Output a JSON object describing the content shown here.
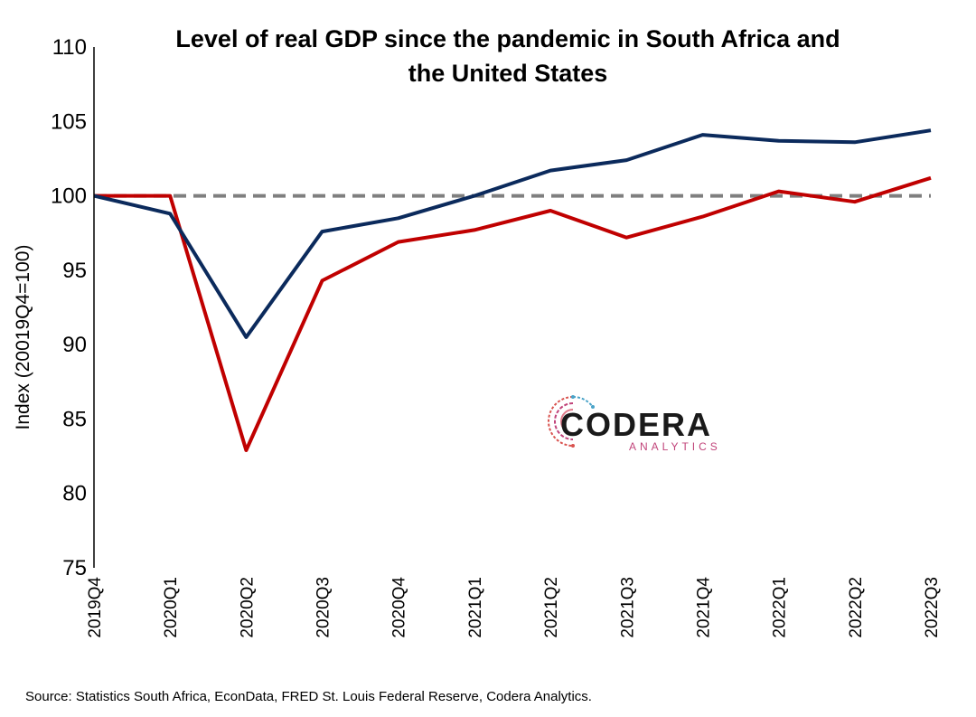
{
  "chart_data": {
    "type": "line",
    "title": "Level of real GDP since the pandemic in South Africa and the United States",
    "title_lines": [
      "Level of real GDP since the pandemic in South Africa and",
      "the United States"
    ],
    "ylabel": "Index (20019Q4=100)",
    "xlabel": "",
    "categories": [
      "2019Q4",
      "2020Q1",
      "2020Q2",
      "2020Q3",
      "2020Q4",
      "2021Q1",
      "2021Q2",
      "2021Q3",
      "2021Q4",
      "2022Q1",
      "2022Q2",
      "2022Q3"
    ],
    "ylim": [
      75,
      110
    ],
    "yticks": [
      75,
      80,
      85,
      90,
      95,
      100,
      105,
      110
    ],
    "grid": false,
    "legend": "none",
    "series": [
      {
        "key": "us",
        "color": "#0b2a5c",
        "values": [
          100,
          98.8,
          90.5,
          97.6,
          98.5,
          100.0,
          101.7,
          102.4,
          104.1,
          103.7,
          103.6,
          104.4
        ]
      },
      {
        "key": "sa",
        "color": "#c00000",
        "values": [
          100,
          100,
          82.9,
          94.3,
          96.9,
          97.7,
          99.0,
          97.2,
          98.6,
          100.3,
          99.6,
          101.2
        ]
      }
    ],
    "reference_line": {
      "value": 100,
      "color": "#7f7f7f",
      "style": "dashed"
    }
  },
  "logo": {
    "name": "CODERA",
    "sub": "ANALYTICS",
    "icon": "circuit-circle-icon",
    "sub_color": "#c1447a"
  },
  "source": "Source: Statistics South Africa, EconData, FRED St. Louis Federal Reserve, Codera Analytics."
}
